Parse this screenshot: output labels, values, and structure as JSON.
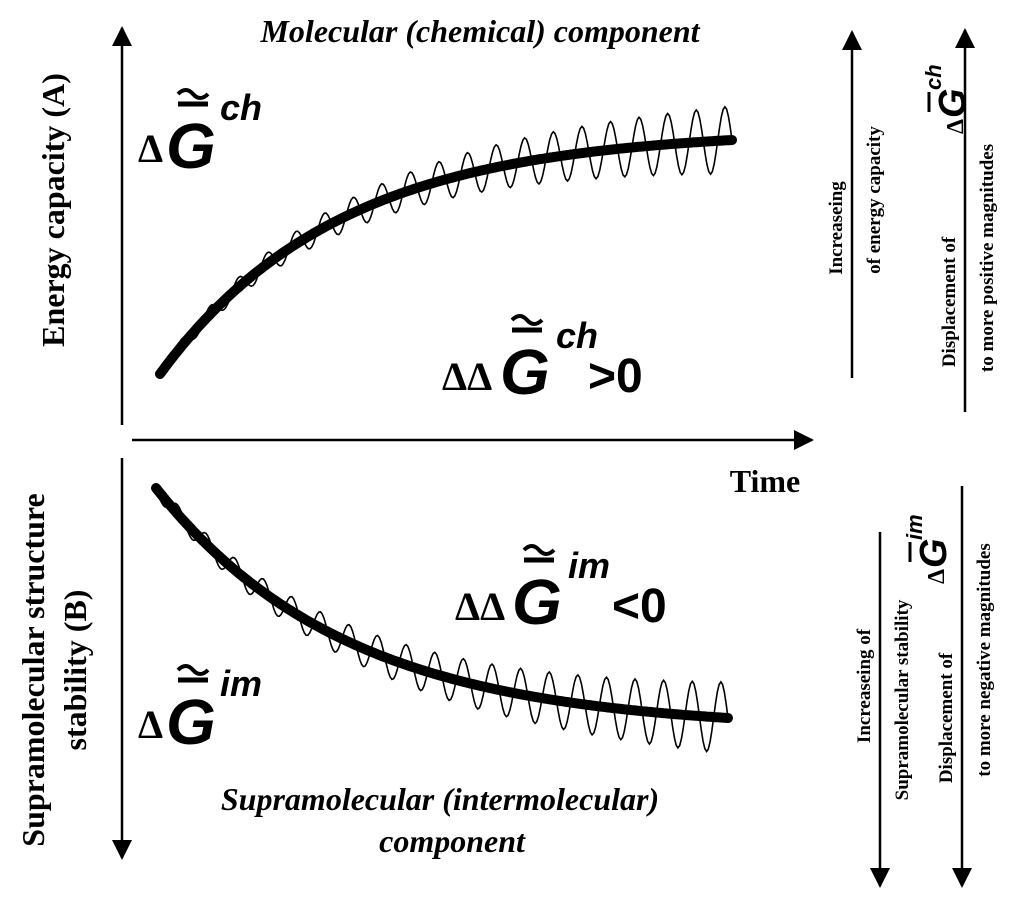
{
  "top_panel": {
    "title": "Molecular (chemical) component",
    "y_axis_label": "Energy capacity (A)",
    "curve_label": {
      "delta": "Δ",
      "symbol": "G",
      "superscript": "ch"
    },
    "change_label": {
      "delta": "ΔΔ",
      "symbol": "G",
      "superscript": "ch",
      "relation": ">0"
    },
    "right_arrow_1": {
      "line1": "Increaseing",
      "line2": "of energy capacity"
    },
    "right_arrow_2": {
      "line1": "Displacement of",
      "line2": "to more positive magnitudes",
      "symbol_delta": "Δ",
      "symbol": "G",
      "superscript": "ch"
    }
  },
  "x_axis_label": "Time",
  "bottom_panel": {
    "title_line1": "Supramolecular (intermolecular)",
    "title_line2": "component",
    "y_axis_label_line1": "Supramolecular structure",
    "y_axis_label_line2": "stability (B)",
    "curve_label": {
      "delta": "Δ",
      "symbol": "G",
      "superscript": "im"
    },
    "change_label": {
      "delta": "ΔΔ",
      "symbol": "G",
      "superscript": "im",
      "relation": "<0"
    },
    "right_arrow_1": {
      "line1": "Increaseing of",
      "line2": "Supramolecular stability"
    },
    "right_arrow_2": {
      "line1": "Displacement of",
      "line2": "to more negative magnitudes",
      "symbol_delta": "Δ",
      "symbol": "G",
      "superscript": "im"
    }
  },
  "colors": {
    "ink": "#000000",
    "background": "#ffffff"
  }
}
